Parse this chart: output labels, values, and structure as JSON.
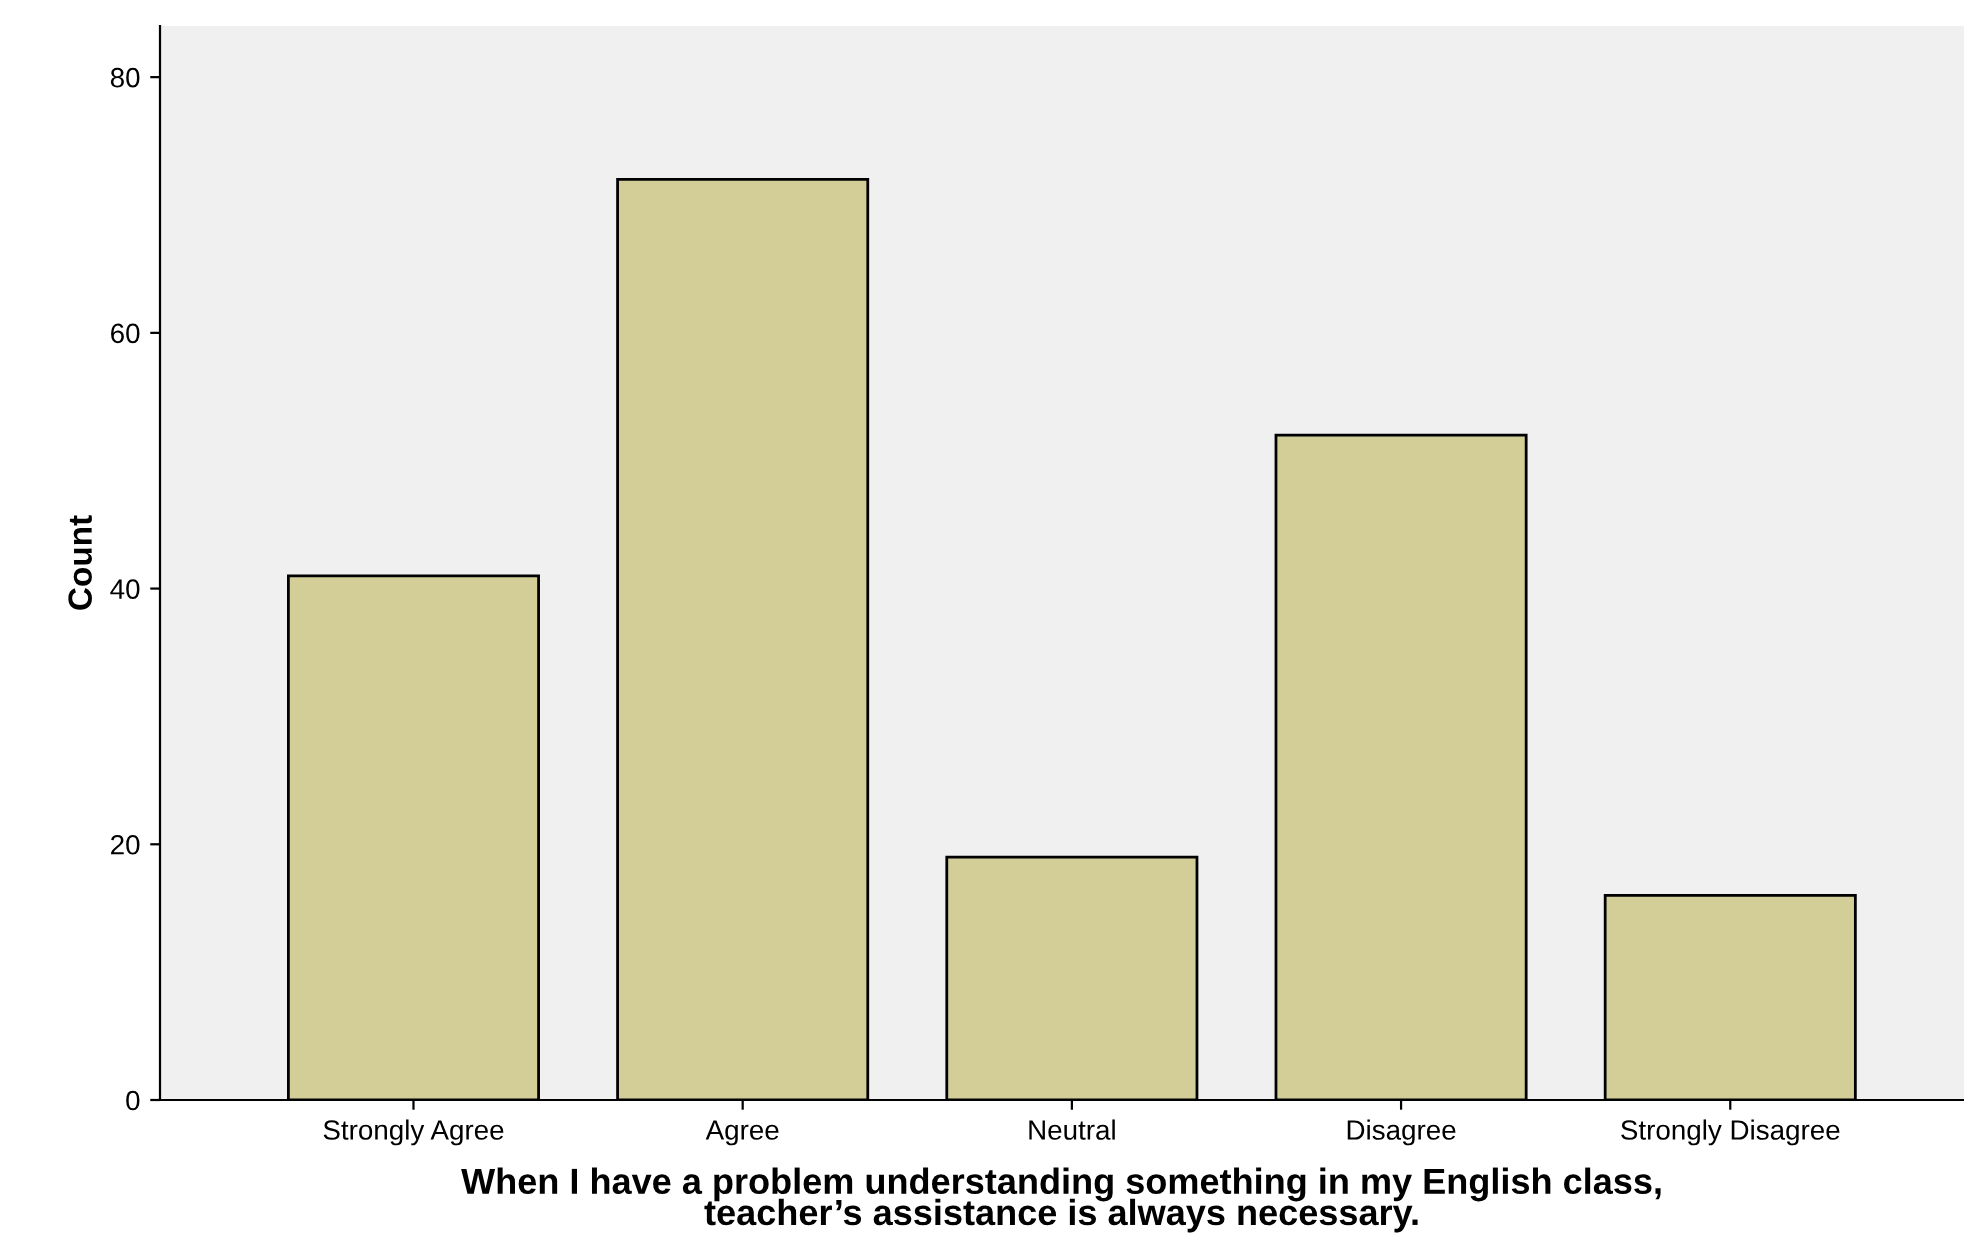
{
  "chart_data": {
    "type": "bar",
    "categories": [
      "Strongly Agree",
      "Agree",
      "Neutral",
      "Disagree",
      "Strongly Disagree"
    ],
    "values": [
      41,
      72,
      19,
      52,
      16
    ],
    "color": "#d3ce97",
    "ylabel": "Count",
    "xlabel": "When I have a problem understanding something in my English class,\nteacher’s assistance is always necessary.",
    "ylim": [
      0,
      84
    ],
    "yticks": [
      0,
      20,
      40,
      60,
      80
    ],
    "grid": false
  }
}
